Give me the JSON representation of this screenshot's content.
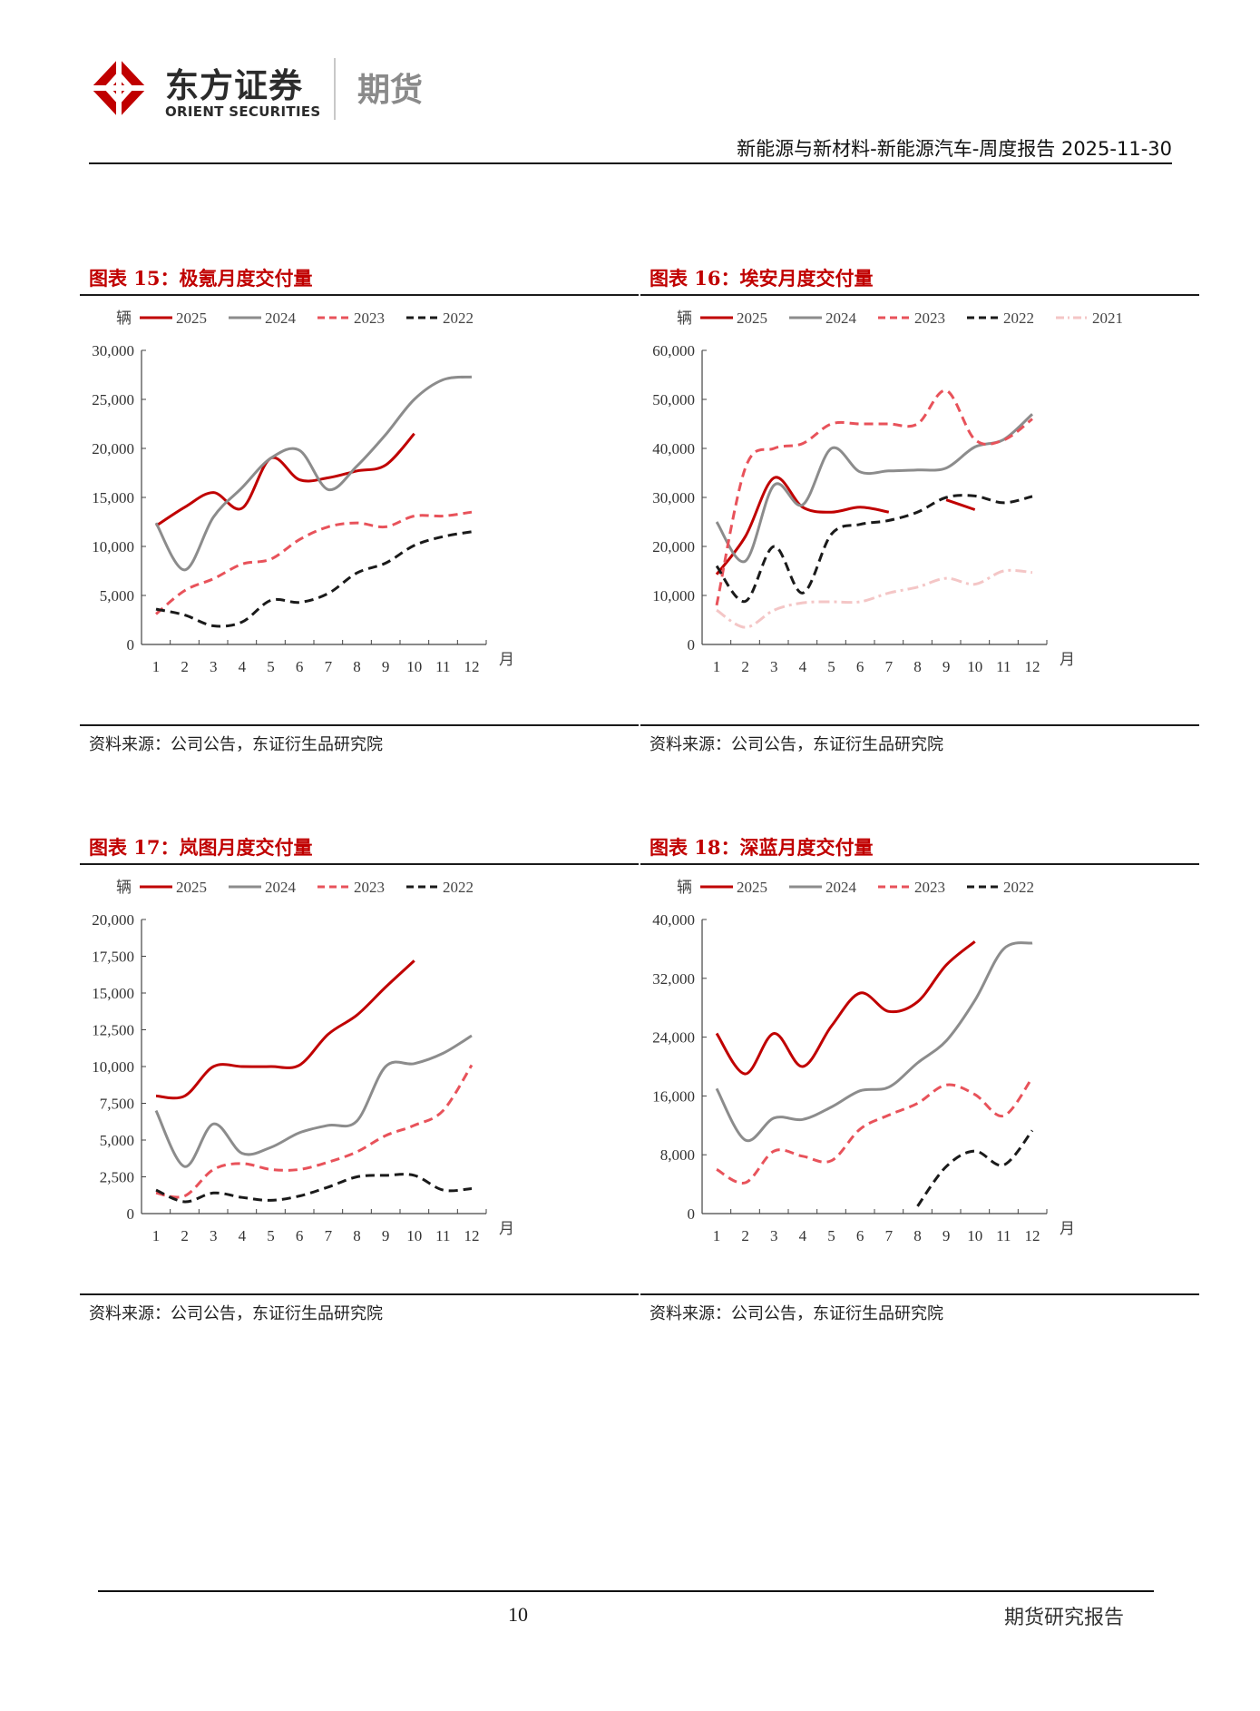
{
  "header": {
    "company_cn": "东方证券",
    "company_en": "ORIENT SECURITIES",
    "division": "期货",
    "report_title": "新能源与新材料-新能源汽车-周度报告 2025-11-30"
  },
  "footer": {
    "page_number": "10",
    "report_type": "期货研究报告"
  },
  "colors": {
    "s2025": "#c00000",
    "s2024": "#8c8c8c",
    "s2023": "#e8525a",
    "s2022": "#1a1a1a",
    "s2021": "#f4c6c6"
  },
  "chart_data": [
    {
      "type": "line",
      "title": "图表 15：极氪月度交付量",
      "source": "资料来源：公司公告，东证衍生品研究院",
      "ylabel": "辆",
      "xlabel": "月",
      "categories": [
        "1",
        "2",
        "3",
        "4",
        "5",
        "6",
        "7",
        "8",
        "9",
        "10",
        "11",
        "12"
      ],
      "yticks": [
        "0",
        "5,000",
        "10,000",
        "15,000",
        "20,000",
        "25,000",
        "30,000"
      ],
      "ylim": [
        0,
        30000
      ],
      "series": [
        {
          "name": "2025",
          "key": "s2025",
          "dash": "solid",
          "values": [
            12100,
            14000,
            15500,
            13900,
            19000,
            16800,
            17000,
            17700,
            18300,
            21500,
            null,
            null
          ]
        },
        {
          "name": "2024",
          "key": "s2024",
          "dash": "solid",
          "values": [
            12400,
            7600,
            13000,
            16000,
            19000,
            19800,
            15800,
            18200,
            21400,
            25000,
            27000,
            27300
          ]
        },
        {
          "name": "2023",
          "key": "s2023",
          "dash": "dash",
          "values": [
            3100,
            5500,
            6700,
            8200,
            8700,
            10700,
            12000,
            12400,
            12000,
            13100,
            13100,
            13500
          ]
        },
        {
          "name": "2022",
          "key": "s2022",
          "dash": "dash",
          "values": [
            3600,
            3000,
            1900,
            2300,
            4500,
            4300,
            5200,
            7300,
            8300,
            10100,
            11000,
            11500
          ]
        }
      ]
    },
    {
      "type": "line",
      "title": "图表 16：埃安月度交付量",
      "source": "资料来源：公司公告，东证衍生品研究院",
      "ylabel": "辆",
      "xlabel": "月",
      "categories": [
        "1",
        "2",
        "3",
        "4",
        "5",
        "6",
        "7",
        "8",
        "9",
        "10",
        "11",
        "12"
      ],
      "yticks": [
        "0",
        "10,000",
        "20,000",
        "30,000",
        "40,000",
        "50,000",
        "60,000"
      ],
      "ylim": [
        0,
        60000
      ],
      "series": [
        {
          "name": "2025",
          "key": "s2025",
          "dash": "solid",
          "values": [
            14300,
            22000,
            34000,
            28000,
            27000,
            28000,
            27000,
            null,
            29500,
            27500,
            null,
            null
          ]
        },
        {
          "name": "2024",
          "key": "s2024",
          "dash": "solid",
          "values": [
            25000,
            17000,
            32500,
            28500,
            40000,
            35200,
            35400,
            35600,
            36000,
            40300,
            41800,
            47000
          ]
        },
        {
          "name": "2023",
          "key": "s2023",
          "dash": "dash",
          "values": [
            8000,
            36000,
            40000,
            41000,
            45000,
            45000,
            45000,
            45000,
            51800,
            41800,
            41700,
            46000
          ]
        },
        {
          "name": "2022",
          "key": "s2022",
          "dash": "dash",
          "values": [
            16000,
            8800,
            20000,
            10500,
            22500,
            24500,
            25300,
            27000,
            30000,
            30300,
            28900,
            30200
          ]
        },
        {
          "name": "2021",
          "key": "s2021",
          "dash": "dashdot",
          "values": [
            7000,
            3500,
            7000,
            8500,
            8700,
            8700,
            10500,
            11700,
            13500,
            12300,
            15000,
            14700
          ]
        }
      ]
    },
    {
      "type": "line",
      "title": "图表 17：岚图月度交付量",
      "source": "资料来源：公司公告，东证衍生品研究院",
      "ylabel": "辆",
      "xlabel": "月",
      "categories": [
        "1",
        "2",
        "3",
        "4",
        "5",
        "6",
        "7",
        "8",
        "9",
        "10",
        "11",
        "12"
      ],
      "yticks": [
        "0",
        "2,500",
        "5,000",
        "7,500",
        "10,000",
        "12,500",
        "15,000",
        "17,500",
        "20,000"
      ],
      "ylim": [
        0,
        20000
      ],
      "series": [
        {
          "name": "2025",
          "key": "s2025",
          "dash": "solid",
          "values": [
            8000,
            8000,
            10000,
            10000,
            10000,
            10100,
            12200,
            13500,
            15400,
            17200,
            null,
            null
          ]
        },
        {
          "name": "2024",
          "key": "s2024",
          "dash": "solid",
          "values": [
            7000,
            3200,
            6100,
            4100,
            4500,
            5500,
            6000,
            6300,
            10000,
            10200,
            10900,
            12100
          ]
        },
        {
          "name": "2023",
          "key": "s2023",
          "dash": "dash",
          "values": [
            1400,
            1200,
            3000,
            3400,
            3000,
            3000,
            3500,
            4200,
            5300,
            6000,
            7000,
            10100
          ]
        },
        {
          "name": "2022",
          "key": "s2022",
          "dash": "dash",
          "values": [
            1600,
            800,
            1400,
            1100,
            900,
            1200,
            1800,
            2500,
            2600,
            2600,
            1600,
            1700
          ]
        }
      ]
    },
    {
      "type": "line",
      "title": "图表 18：深蓝月度交付量",
      "source": "资料来源：公司公告，东证衍生品研究院",
      "ylabel": "辆",
      "xlabel": "月",
      "categories": [
        "1",
        "2",
        "3",
        "4",
        "5",
        "6",
        "7",
        "8",
        "9",
        "10",
        "11",
        "12"
      ],
      "yticks": [
        "0",
        "8,000",
        "16,000",
        "24,000",
        "32,000",
        "40,000"
      ],
      "ylim": [
        0,
        40000
      ],
      "series": [
        {
          "name": "2025",
          "key": "s2025",
          "dash": "solid",
          "values": [
            24500,
            19000,
            24500,
            20000,
            25500,
            30000,
            27500,
            28800,
            33800,
            37000,
            null,
            null
          ]
        },
        {
          "name": "2024",
          "key": "s2024",
          "dash": "solid",
          "values": [
            17000,
            10000,
            13000,
            12800,
            14500,
            16700,
            17200,
            20500,
            23500,
            29000,
            36000,
            36800
          ]
        },
        {
          "name": "2023",
          "key": "s2023",
          "dash": "dash",
          "values": [
            6000,
            4200,
            8500,
            7800,
            7200,
            11500,
            13400,
            15000,
            17500,
            16200,
            13300,
            18500
          ]
        },
        {
          "name": "2022",
          "key": "s2022",
          "dash": "dash",
          "values": [
            null,
            null,
            null,
            null,
            null,
            null,
            null,
            1000,
            6400,
            8500,
            6600,
            11300
          ]
        }
      ]
    }
  ]
}
